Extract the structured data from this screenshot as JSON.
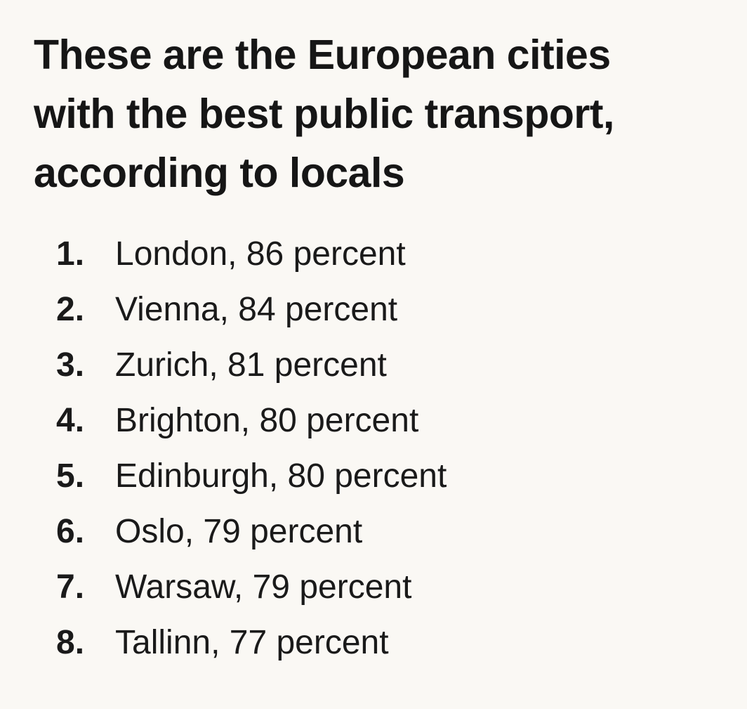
{
  "heading": {
    "line1": "These are the European cities",
    "line2": "with the best public transport,",
    "line3": "according to locals"
  },
  "ranking": [
    {
      "rank": "1.",
      "text": "London, 86 percent"
    },
    {
      "rank": "2.",
      "text": "Vienna, 84 percent"
    },
    {
      "rank": "3.",
      "text": "Zurich, 81 percent"
    },
    {
      "rank": "4.",
      "text": "Brighton, 80 percent"
    },
    {
      "rank": "5.",
      "text": "Edinburgh, 80 percent"
    },
    {
      "rank": "6.",
      "text": "Oslo, 79 percent"
    },
    {
      "rank": "7.",
      "text": "Warsaw, 79 percent"
    },
    {
      "rank": "8.",
      "text": "Tallinn, 77 percent"
    }
  ],
  "colors": {
    "background": "#faf8f4",
    "text": "#161616"
  }
}
